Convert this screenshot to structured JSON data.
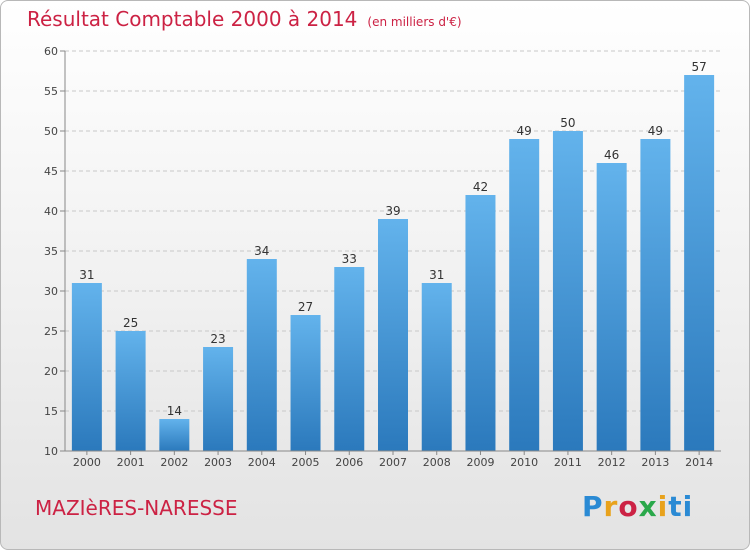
{
  "header": {
    "title": "Résultat Comptable 2000 à 2014",
    "unit": "(en milliers d'€)"
  },
  "footer": {
    "commune": "MAZIèRES-NARESSE",
    "logo_text": "Proxiti"
  },
  "colors": {
    "title": "#cc2244",
    "bar_light": "#63b3ec",
    "bar_dark": "#2b79bc"
  },
  "chart_data": {
    "type": "bar",
    "title": "Résultat Comptable 2000 à 2014",
    "subtitle": "(en milliers d'€)",
    "xlabel": "",
    "ylabel": "",
    "categories": [
      "2000",
      "2001",
      "2002",
      "2003",
      "2004",
      "2005",
      "2006",
      "2007",
      "2008",
      "2009",
      "2010",
      "2011",
      "2012",
      "2013",
      "2014"
    ],
    "values": [
      31,
      25,
      14,
      23,
      34,
      27,
      33,
      39,
      31,
      42,
      49,
      50,
      46,
      49,
      57
    ],
    "ylim": [
      10,
      60
    ],
    "yticks": [
      10,
      15,
      20,
      25,
      30,
      35,
      40,
      45,
      50,
      55,
      60
    ],
    "grid": true,
    "legend": "none"
  }
}
